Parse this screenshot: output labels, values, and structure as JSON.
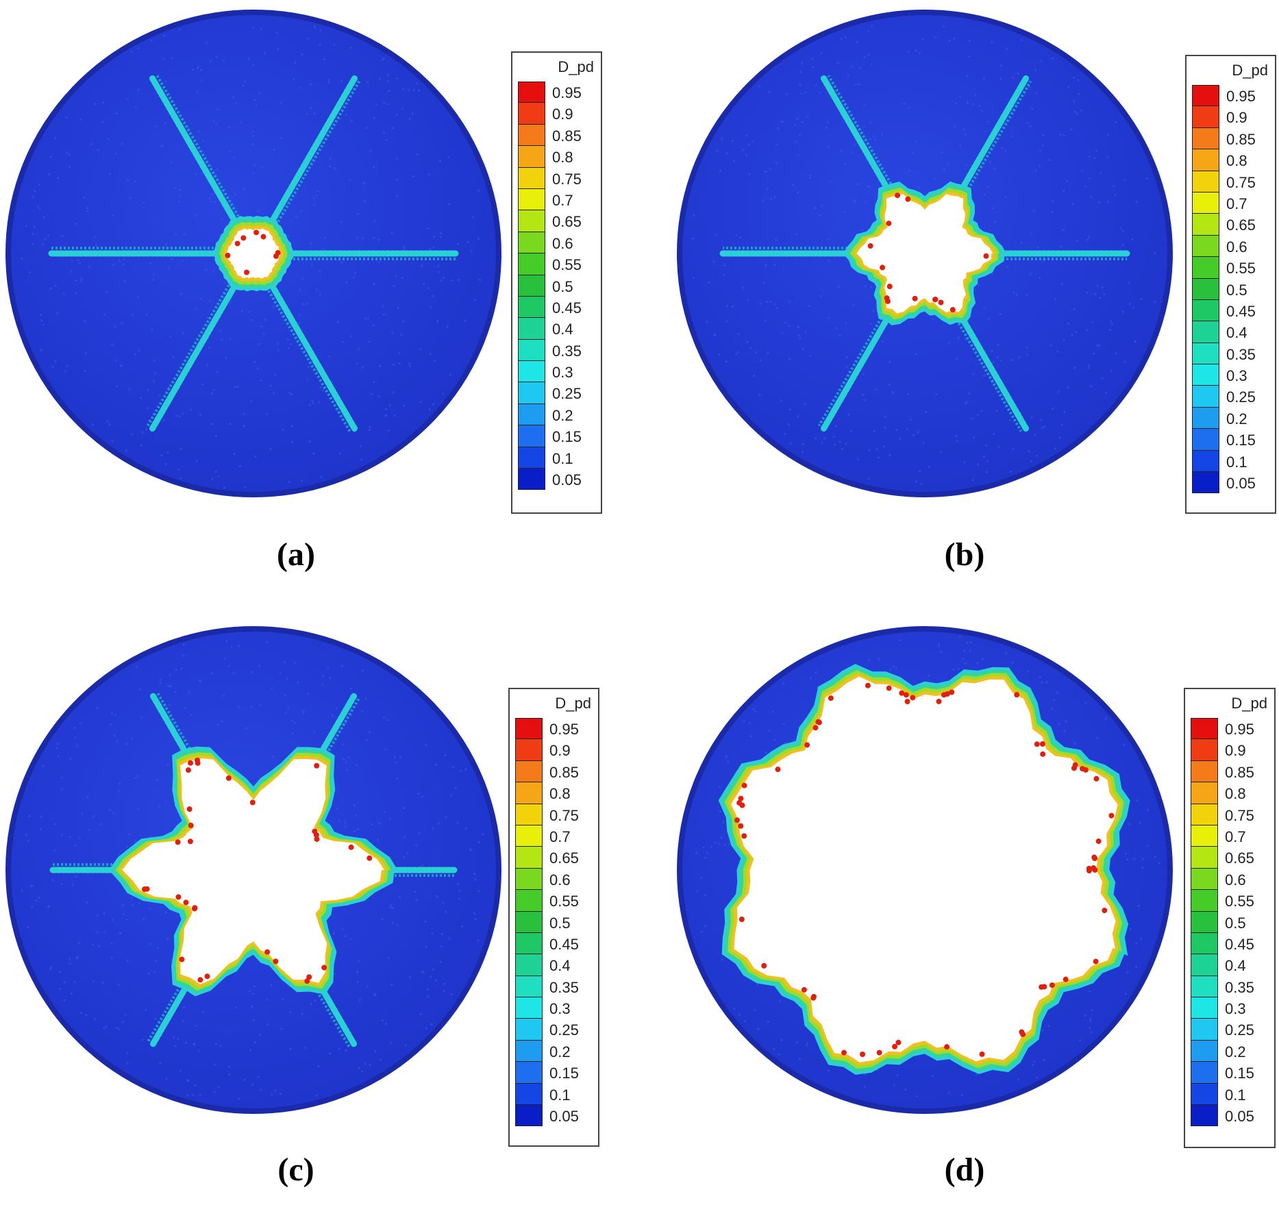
{
  "colormap": {
    "title": "D_pd",
    "levels": [
      {
        "label": "0.95",
        "color": "#e60f0f"
      },
      {
        "label": "0.9",
        "color": "#f03c14"
      },
      {
        "label": "0.85",
        "color": "#f57a1a"
      },
      {
        "label": "0.8",
        "color": "#f5a516"
      },
      {
        "label": "0.75",
        "color": "#f2d20a"
      },
      {
        "label": "0.7",
        "color": "#e8f00a"
      },
      {
        "label": "0.65",
        "color": "#b4e614"
      },
      {
        "label": "0.6",
        "color": "#7ad81e"
      },
      {
        "label": "0.55",
        "color": "#46cc28"
      },
      {
        "label": "0.5",
        "color": "#28c03c"
      },
      {
        "label": "0.45",
        "color": "#1ec864"
      },
      {
        "label": "0.4",
        "color": "#1ed296"
      },
      {
        "label": "0.35",
        "color": "#1ee0c0"
      },
      {
        "label": "0.3",
        "color": "#1ee6e6"
      },
      {
        "label": "0.25",
        "color": "#1ec8f0"
      },
      {
        "label": "0.2",
        "color": "#1e9cf0"
      },
      {
        "label": "0.15",
        "color": "#1e6ef0"
      },
      {
        "label": "0.1",
        "color": "#1446e6"
      },
      {
        "label": "0.05",
        "color": "#0a1ec8"
      }
    ]
  },
  "panels": [
    {
      "caption": "(a)",
      "stage": "radial-cracks"
    },
    {
      "caption": "(b)",
      "stage": "small-cavity"
    },
    {
      "caption": "(c)",
      "stage": "star-cavity"
    },
    {
      "caption": "(d)",
      "stage": "large-cavity"
    }
  ],
  "colors": {
    "disk_fill": "#1f35cc",
    "disk_edge": "#1a2aa8",
    "crack": "#2ad0d6",
    "cavity_ring_outer": "#34d3a0",
    "cavity_ring_mid": "#9fdc2a",
    "cavity_ring_inner": "#f0c020",
    "damage_max": "#e0200f"
  }
}
